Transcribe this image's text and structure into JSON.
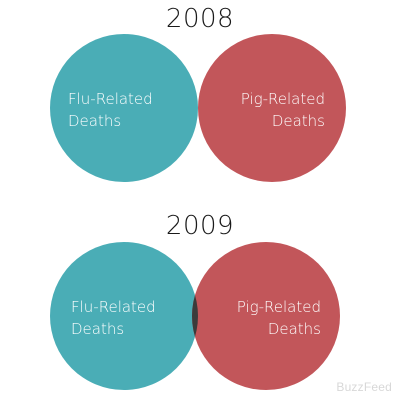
{
  "colors": {
    "flu_circle": "#4aadb6",
    "pig_circle": "#c2565a",
    "overlap": "#3b3b3b",
    "title_text": "#1a1a1a",
    "label_text": "#ffffff"
  },
  "diagram_2008": {
    "title": "2008",
    "left_set": {
      "label_line1": "Flu-Related",
      "label_line2": "Deaths"
    },
    "right_set": {
      "label_line1": "Pig-Related",
      "label_line2": "Deaths"
    },
    "overlap": false
  },
  "diagram_2009": {
    "title": "2009",
    "left_set": {
      "label_line1": "Flu-Related",
      "label_line2": "Deaths"
    },
    "right_set": {
      "label_line1": "Pig-Related",
      "label_line2": "Deaths"
    },
    "overlap": true
  },
  "watermark": "BuzzFeed"
}
